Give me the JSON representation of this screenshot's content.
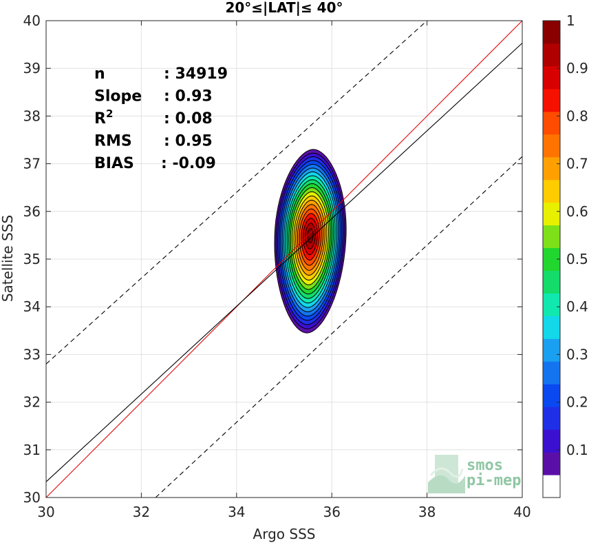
{
  "chart_data": {
    "type": "contour",
    "title": "20°≤|LAT|≤ 40°",
    "xlabel": "Argo SSS",
    "ylabel": "Satellite SSS",
    "xlim": [
      30,
      40
    ],
    "ylim": [
      30,
      40
    ],
    "xticks": [
      "30",
      "32",
      "34",
      "36",
      "38",
      "40"
    ],
    "yticks": [
      "30",
      "31",
      "32",
      "33",
      "34",
      "35",
      "36",
      "37",
      "38",
      "39",
      "40"
    ],
    "grid": true,
    "stats": [
      {
        "key": "n",
        "sep": ":",
        "value": "34919"
      },
      {
        "key": "Slope",
        "sep": ":",
        "value": "0.93"
      },
      {
        "key": "R",
        "sup": "2",
        "sep": ":",
        "value": "0.08"
      },
      {
        "key": "RMS",
        "sep": ":",
        "value": "0.95"
      },
      {
        "key": "BIAS",
        "sep": ":",
        "value": "-0.09"
      }
    ],
    "lines": [
      {
        "role": "one-to-one",
        "color": "#e00000",
        "style": "solid",
        "points": [
          [
            30,
            30
          ],
          [
            40,
            40
          ]
        ]
      },
      {
        "role": "regression",
        "color": "#000000",
        "style": "solid",
        "points": [
          [
            30,
            30.33
          ],
          [
            40,
            39.53
          ]
        ]
      },
      {
        "role": "upper-bound",
        "color": "#000000",
        "style": "dashed",
        "points": [
          [
            30,
            32.8
          ],
          [
            38.0,
            40
          ]
        ]
      },
      {
        "role": "lower-bound",
        "color": "#000000",
        "style": "dashed",
        "points": [
          [
            32.3,
            30
          ],
          [
            40,
            37.15
          ]
        ]
      }
    ],
    "density_contours": {
      "center": [
        35.55,
        35.5
      ],
      "levels": [
        0.05,
        0.15,
        0.25,
        0.35,
        0.45,
        0.55,
        0.65,
        0.75,
        0.85,
        0.95
      ],
      "outer_extent": {
        "x": [
          34.65,
          36.15
        ],
        "y": [
          33.45,
          37.3
        ]
      }
    },
    "colorbar": {
      "ticks": [
        "0.1",
        "0.2",
        "0.3",
        "0.4",
        "0.5",
        "0.6",
        "0.7",
        "0.8",
        "0.9",
        "1"
      ],
      "range": [
        0,
        1
      ],
      "colors": [
        "#ffffff",
        "#5a10a8",
        "#3b10d0",
        "#1f2fe8",
        "#0a48f0",
        "#1474f0",
        "#1aa0f0",
        "#12d8ea",
        "#10e8b0",
        "#14dc6a",
        "#22d630",
        "#7ee018",
        "#e8f000",
        "#ffcc00",
        "#ffa000",
        "#ff7400",
        "#ff4c00",
        "#f51000",
        "#d80000",
        "#b00000",
        "#8a0000"
      ]
    }
  },
  "logo": {
    "line1": "smos",
    "line2": "pi-mep"
  }
}
